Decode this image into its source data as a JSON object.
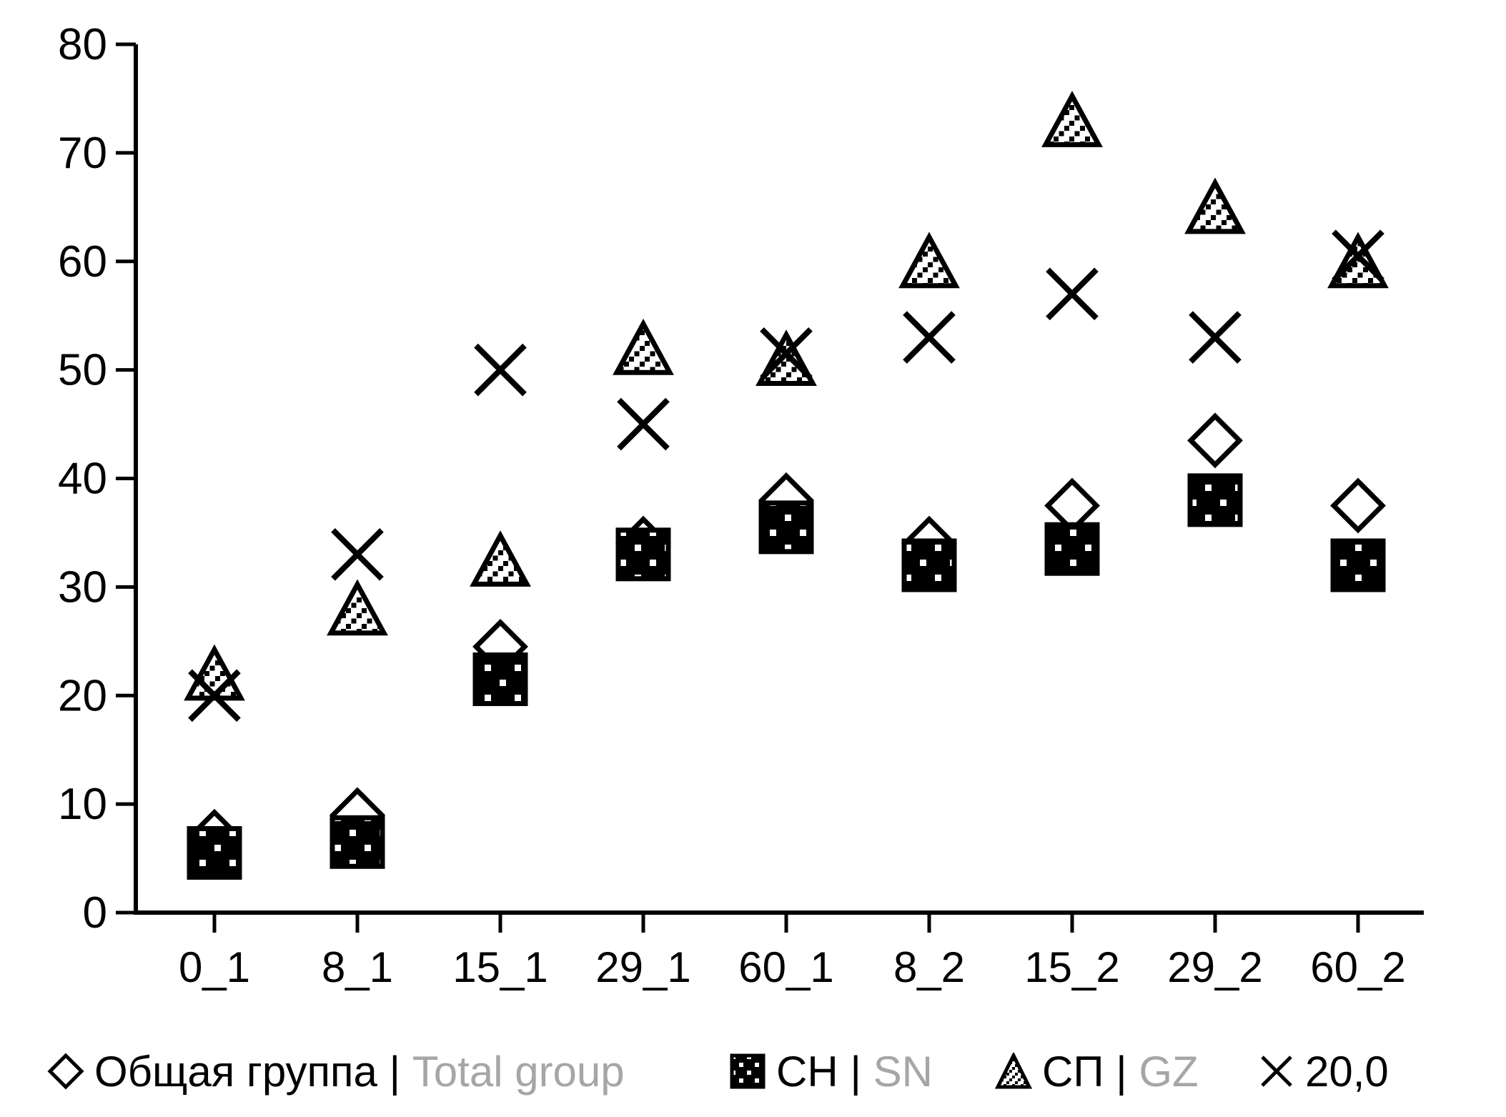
{
  "chart_data": {
    "type": "scatter",
    "title": "",
    "xlabel": "",
    "ylabel": "",
    "categories": [
      "0_1",
      "8_1",
      "15_1",
      "29_1",
      "60_1",
      "8_2",
      "15_2",
      "29_2",
      "60_2"
    ],
    "series": [
      {
        "id": "total",
        "name": "Общая группа | Total group",
        "label_ru": "Общая группа",
        "label_en": "Total group",
        "marker": "diamond",
        "values": [
          7,
          9,
          24.5,
          34,
          38,
          34,
          37.5,
          43.5,
          37.5
        ]
      },
      {
        "id": "sn",
        "name": "СН | SN",
        "label_ru": "СН",
        "label_en": "SN",
        "marker": "dotted-square",
        "values": [
          5.5,
          6.5,
          21.5,
          33,
          35.5,
          32,
          33.5,
          38,
          32
        ]
      },
      {
        "id": "gz",
        "name": "СП | GZ",
        "label_ru": "СП",
        "label_en": "GZ",
        "marker": "hatched-triangle",
        "values": [
          22,
          28,
          32.5,
          52,
          51,
          60,
          73,
          65,
          60
        ]
      },
      {
        "id": "x20",
        "name": "20,0",
        "label_ru": "20,0",
        "label_en": "",
        "marker": "x-cross",
        "values": [
          20,
          33,
          50,
          45,
          51.5,
          53,
          57,
          53,
          60.5
        ]
      }
    ],
    "ylim": [
      0,
      80
    ],
    "ytick_step": 10,
    "ytick_labels": [
      "0",
      "10",
      "20",
      "30",
      "40",
      "50",
      "60",
      "70",
      "80"
    ],
    "grid": false,
    "legend_position": "bottom",
    "colors": {
      "marker_stroke": "#000000",
      "text_primary": "#000000",
      "text_secondary": "#A6A6A6",
      "background": "#FFFFFF"
    }
  }
}
